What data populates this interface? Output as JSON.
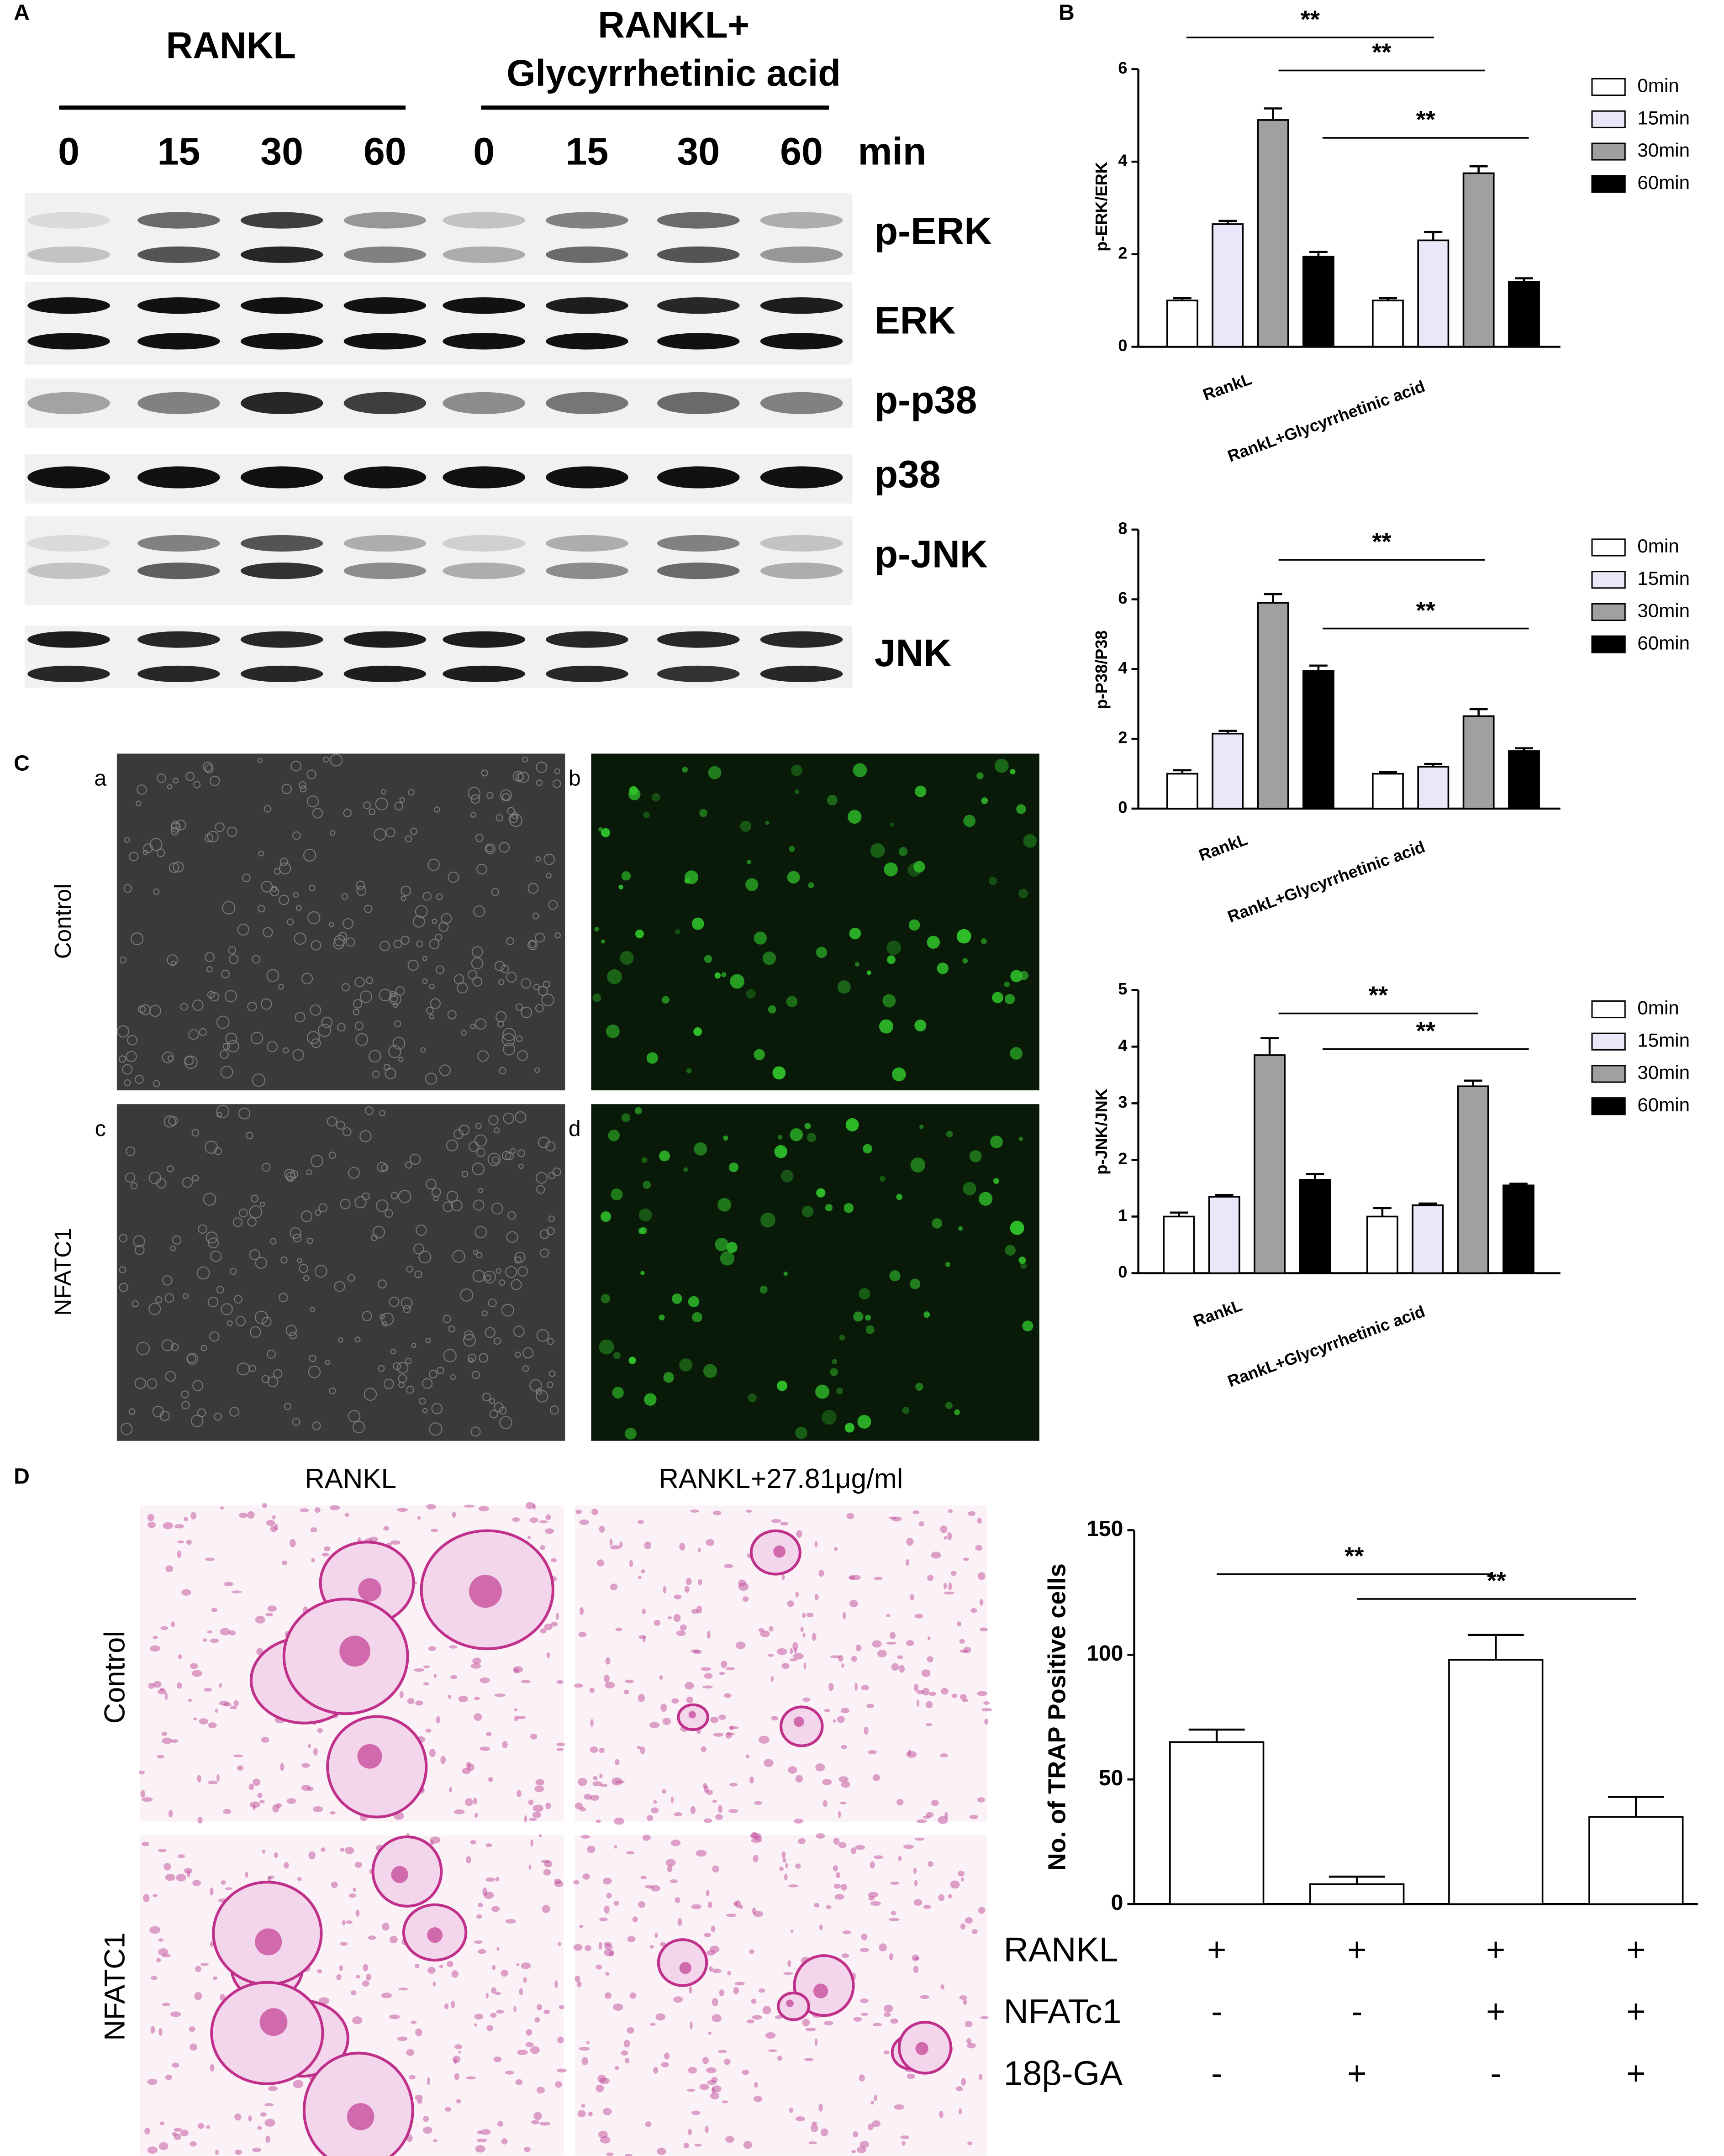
{
  "panel_labels": [
    "A",
    "B",
    "C",
    "D"
  ],
  "blot": {
    "group_labels": [
      "RANKL",
      "RANKL+",
      "Glycyrrhetinic acid"
    ],
    "times": [
      "0",
      "15",
      "30",
      "60",
      "0",
      "15",
      "30",
      "60"
    ],
    "time_unit": "min",
    "rows": [
      "p-ERK",
      "ERK",
      "p-p38",
      "p38",
      "p-JNK",
      "JNK"
    ]
  },
  "images_c": {
    "labels": [
      "a",
      "b",
      "c",
      "d"
    ],
    "rows": [
      "Control",
      "NFATC1"
    ]
  },
  "images_d": {
    "columns": [
      "RANKL",
      "RANKL+27.81μg/ml"
    ],
    "rows": [
      "Control",
      "NFATC1"
    ]
  },
  "chart_data": [
    {
      "type": "bar",
      "y_label": "p-ERK/ERK",
      "categories": [
        "RankL",
        "RankL+Glycyrrhetinic acid"
      ],
      "series": [
        {
          "name": "0min",
          "color": "#ffffff",
          "values": [
            1.0,
            1.0
          ],
          "errors": [
            0.05,
            0.05
          ]
        },
        {
          "name": "15min",
          "color": "#e8e8f8",
          "values": [
            2.65,
            2.3
          ],
          "errors": [
            0.07,
            0.18
          ]
        },
        {
          "name": "30min",
          "color": "#a0a0a0",
          "values": [
            4.9,
            3.75
          ],
          "errors": [
            0.25,
            0.15
          ]
        },
        {
          "name": "60min",
          "color": "#000000",
          "values": [
            1.95,
            1.4
          ],
          "errors": [
            0.1,
            0.08
          ]
        }
      ],
      "ylim": [
        0,
        6
      ],
      "yticks": [
        0,
        2,
        4,
        6
      ],
      "annotations": [
        "**",
        "**",
        "**"
      ]
    },
    {
      "type": "bar",
      "y_label": "p-P38/P38",
      "categories": [
        "RankL",
        "RankL+Glycyrrhetinic acid"
      ],
      "series": [
        {
          "name": "0min",
          "color": "#ffffff",
          "values": [
            1.0,
            1.0
          ],
          "errors": [
            0.1,
            0.05
          ]
        },
        {
          "name": "15min",
          "color": "#e8e8f8",
          "values": [
            2.15,
            1.2
          ],
          "errors": [
            0.08,
            0.08
          ]
        },
        {
          "name": "30min",
          "color": "#a0a0a0",
          "values": [
            5.9,
            2.65
          ],
          "errors": [
            0.25,
            0.2
          ]
        },
        {
          "name": "60min",
          "color": "#000000",
          "values": [
            3.95,
            1.65
          ],
          "errors": [
            0.15,
            0.08
          ]
        }
      ],
      "ylim": [
        0,
        8
      ],
      "yticks": [
        0,
        2,
        4,
        6,
        8
      ],
      "annotations": [
        "**",
        "**"
      ]
    },
    {
      "type": "bar",
      "y_label": "p-JNK/JNK",
      "categories": [
        "RankL",
        "RankL+Glycyrrhetinic acid"
      ],
      "series": [
        {
          "name": "0min",
          "color": "#ffffff",
          "values": [
            1.0,
            1.0
          ],
          "errors": [
            0.07,
            0.15
          ]
        },
        {
          "name": "15min",
          "color": "#e8e8f8",
          "values": [
            1.35,
            1.2
          ],
          "errors": [
            0.03,
            0.03
          ]
        },
        {
          "name": "30min",
          "color": "#a0a0a0",
          "values": [
            3.85,
            3.3
          ],
          "errors": [
            0.3,
            0.1
          ]
        },
        {
          "name": "60min",
          "color": "#000000",
          "values": [
            1.65,
            1.55
          ],
          "errors": [
            0.1,
            0.03
          ]
        }
      ],
      "ylim": [
        0,
        5
      ],
      "yticks": [
        0,
        1,
        2,
        3,
        4,
        5
      ],
      "annotations": [
        "**",
        "**"
      ]
    },
    {
      "type": "bar",
      "y_label": "No. of TRAP Positive cells",
      "categories": [
        null,
        null,
        null,
        null
      ],
      "values": [
        65,
        8,
        98,
        35
      ],
      "errors": [
        5,
        3,
        10,
        8
      ],
      "color": "#ffffff",
      "ylim": [
        0,
        150
      ],
      "yticks": [
        0,
        50,
        100,
        150
      ],
      "annotations": [
        "**",
        "**"
      ],
      "conditions": [
        {
          "name": "RANKL",
          "signs": [
            "+",
            "+",
            "+",
            "+"
          ]
        },
        {
          "name": "NFATc1",
          "signs": [
            "-",
            "-",
            "+",
            "+"
          ]
        },
        {
          "name": "18β-GA",
          "signs": [
            "-",
            "+",
            "-",
            "+"
          ]
        }
      ]
    }
  ]
}
